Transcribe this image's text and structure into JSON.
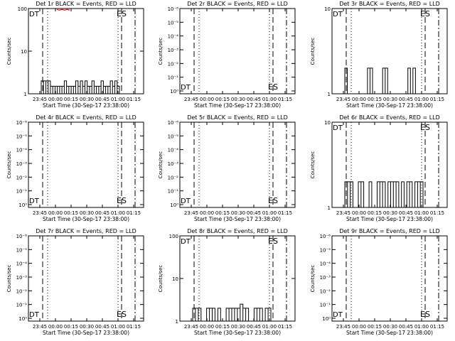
{
  "chart_data": [
    {
      "type": "line",
      "title": "Det 1r BLACK = Events, RED = LLD",
      "xlabel": "Start Time (30-Sep-17 23:38:00)",
      "ylabel": "Counts/sec",
      "yscale": "log",
      "yticks": [
        "1",
        "10",
        "100"
      ],
      "ylim": [
        1,
        100
      ],
      "left_marker": "DT",
      "right_marker": "ES",
      "series": [
        {
          "name": "Events",
          "color": "#000000",
          "values": [
            2,
            2,
            2,
            2,
            1.5,
            1.5,
            1.5,
            1.5,
            1.5,
            1.5,
            2,
            1.5,
            1.5,
            1.5,
            1.5,
            2,
            1.5,
            2,
            1.5,
            2,
            1.5,
            1.5,
            2,
            1.5,
            1.5,
            1.5,
            2,
            1.5,
            1.5,
            1.5,
            2,
            1.5,
            2,
            1.5
          ]
        },
        {
          "name": "LLD",
          "color": "#ff0000",
          "values": [
            95,
            95,
            95,
            95,
            95,
            95
          ]
        }
      ]
    },
    {
      "type": "line",
      "title": "Det 2r BLACK = Events, RED = LLD",
      "xlabel": "Start Time (30-Sep-17 23:38:00)",
      "ylabel": "Counts/sec",
      "yscale": "log",
      "yticks": [
        "10⁰",
        "10⁻¹",
        "10⁻²",
        "10⁻³",
        "10⁻⁴",
        "10⁻⁵",
        "10⁻⁶"
      ],
      "left_marker": "DT",
      "right_marker": "ES",
      "series": []
    },
    {
      "type": "line",
      "title": "Det 3r BLACK = Events, RED = LLD",
      "xlabel": "Start Time (30-Sep-17 23:38:00)",
      "ylabel": "Counts/sec",
      "yscale": "log",
      "yticks": [
        "1",
        "10"
      ],
      "ylim": [
        1,
        10
      ],
      "left_marker": "DT",
      "right_marker": "ES",
      "series": [
        {
          "name": "Events",
          "color": "#000000",
          "values": [
            2,
            0,
            0,
            0,
            0,
            0,
            0,
            0,
            0,
            2,
            2,
            0,
            0,
            0,
            0,
            2,
            2,
            0,
            0,
            0,
            0,
            0,
            0,
            0,
            0,
            2,
            0,
            2,
            0,
            0,
            0
          ]
        }
      ]
    },
    {
      "type": "line",
      "title": "Det 4r BLACK = Events, RED = LLD",
      "xlabel": "Start Time (30-Sep-17 23:38:00)",
      "ylabel": "Counts/sec",
      "yscale": "log",
      "yticks": [
        "10⁰",
        "10⁻¹",
        "10⁻²",
        "10⁻³",
        "10⁻⁴",
        "10⁻⁵",
        "10⁻⁶"
      ],
      "left_marker": "DT",
      "right_marker": "ES",
      "series": []
    },
    {
      "type": "line",
      "title": "Det 5r BLACK = Events, RED = LLD",
      "xlabel": "Start Time (30-Sep-17 23:38:00)",
      "ylabel": "Counts/sec",
      "yscale": "log",
      "yticks": [
        "10⁰",
        "10⁻¹",
        "10⁻²",
        "10⁻³",
        "10⁻⁴",
        "10⁻⁵",
        "10⁻⁶"
      ],
      "left_marker": "DT",
      "right_marker": "ES",
      "series": []
    },
    {
      "type": "line",
      "title": "Det 6r BLACK = Events, RED = LLD",
      "xlabel": "Start Time (30-Sep-17 23:38:00)",
      "ylabel": "Counts/sec",
      "yscale": "log",
      "yticks": [
        "1",
        "10"
      ],
      "ylim": [
        1,
        10
      ],
      "left_marker": "DT",
      "right_marker": "ES",
      "series": [
        {
          "name": "Events",
          "color": "#000000",
          "values": [
            2,
            2,
            2,
            0,
            0,
            2,
            2,
            0,
            0,
            2,
            0,
            0,
            2,
            2,
            2,
            0,
            2,
            2,
            2,
            2,
            0,
            2,
            0,
            2,
            2,
            0,
            2,
            2,
            2
          ]
        }
      ]
    },
    {
      "type": "line",
      "title": "Det 7r BLACK = Events, RED = LLD",
      "xlabel": "Start Time (30-Sep-17 23:38:00)",
      "ylabel": "Counts/sec",
      "yscale": "log",
      "yticks": [
        "10⁰",
        "10⁻¹",
        "10⁻²",
        "10⁻³",
        "10⁻⁴",
        "10⁻⁵",
        "10⁻⁶"
      ],
      "left_marker": "DT",
      "right_marker": "ES",
      "series": []
    },
    {
      "type": "line",
      "title": "Det 8r BLACK = Events, RED = LLD",
      "xlabel": "Start Time (30-Sep-17 23:38:00)",
      "ylabel": "Counts/sec",
      "yscale": "log",
      "yticks": [
        "1",
        "10",
        "100"
      ],
      "ylim": [
        1,
        100
      ],
      "left_marker": "DT",
      "right_marker": "ES",
      "series": [
        {
          "name": "Events",
          "color": "#000000",
          "values": [
            2,
            2,
            2,
            0,
            0,
            2,
            2,
            2,
            0,
            2,
            0,
            0,
            2,
            2,
            2,
            2,
            2,
            2.5,
            2,
            2,
            0,
            0,
            2,
            2,
            2,
            0,
            2,
            2
          ]
        }
      ]
    },
    {
      "type": "line",
      "title": "Det 9r BLACK = Events, RED = LLD",
      "xlabel": "Start Time (30-Sep-17 23:38:00)",
      "ylabel": "Counts/sec",
      "yscale": "log",
      "yticks": [
        "10⁰",
        "10⁻¹",
        "10⁻²",
        "10⁻³",
        "10⁻⁴",
        "10⁻⁵",
        "10⁻⁶"
      ],
      "left_marker": "DT",
      "right_marker": "ES",
      "series": []
    }
  ],
  "shared": {
    "xticks": [
      "23:45",
      "00:00",
      "00:15",
      "00:30",
      "00:45",
      "01:00",
      "01:15"
    ]
  }
}
